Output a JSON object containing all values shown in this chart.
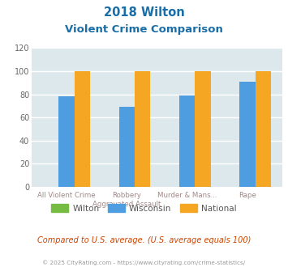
{
  "title_line1": "2018 Wilton",
  "title_line2": "Violent Crime Comparison",
  "cat_line1": [
    "All Violent Crime",
    "Robbery",
    "Murder & Mans...",
    "Rape"
  ],
  "cat_line2": [
    "",
    "Aggravated Assault",
    "",
    ""
  ],
  "wilton": [
    0,
    0,
    0,
    0
  ],
  "wisconsin": [
    78,
    69,
    79,
    91
  ],
  "national": [
    100,
    100,
    100,
    100
  ],
  "wilton_color": "#76bb42",
  "wisconsin_color": "#4d9de0",
  "national_color": "#f5a623",
  "bg_color": "#dde8ec",
  "title_color": "#1a6ea8",
  "label_color": "#a08888",
  "note_color": "#cc4400",
  "footer_color": "#999999",
  "ylim": [
    0,
    120
  ],
  "yticks": [
    0,
    20,
    40,
    60,
    80,
    100,
    120
  ],
  "bar_width": 0.26,
  "note_text": "Compared to U.S. average. (U.S. average equals 100)",
  "footer_text": "© 2025 CityRating.com - https://www.cityrating.com/crime-statistics/"
}
